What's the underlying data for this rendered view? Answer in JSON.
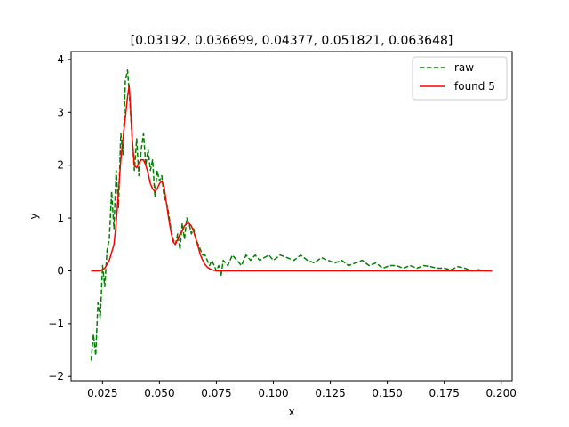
{
  "chart_data": {
    "type": "line",
    "title": "[0.03192, 0.036699, 0.04377, 0.051821, 0.063648]",
    "xlabel": "x",
    "ylabel": "y",
    "xlim": [
      0.0112,
      0.2048
    ],
    "ylim": [
      -2.08,
      4.15
    ],
    "x_ticks": [
      0.025,
      0.05,
      0.075,
      0.1,
      0.125,
      0.15,
      0.175,
      0.2
    ],
    "x_tick_labels": [
      "0.025",
      "0.050",
      "0.075",
      "0.100",
      "0.125",
      "0.150",
      "0.175",
      "0.200"
    ],
    "y_ticks": [
      -2,
      -1,
      0,
      1,
      2,
      3,
      4
    ],
    "y_tick_labels": [
      "−2",
      "−1",
      "0",
      "1",
      "2",
      "3",
      "4"
    ],
    "grid": false,
    "legend_position": "top-right",
    "series": [
      {
        "name": "raw",
        "color": "#008000",
        "style": "dashed",
        "x": [
          0.02,
          0.021,
          0.022,
          0.023,
          0.024,
          0.025,
          0.026,
          0.027,
          0.028,
          0.029,
          0.03,
          0.031,
          0.032,
          0.033,
          0.034,
          0.035,
          0.036,
          0.037,
          0.038,
          0.039,
          0.04,
          0.041,
          0.042,
          0.043,
          0.044,
          0.045,
          0.046,
          0.047,
          0.048,
          0.049,
          0.05,
          0.051,
          0.052,
          0.053,
          0.054,
          0.055,
          0.056,
          0.057,
          0.058,
          0.059,
          0.06,
          0.061,
          0.062,
          0.063,
          0.064,
          0.065,
          0.066,
          0.067,
          0.068,
          0.069,
          0.07,
          0.071,
          0.072,
          0.073,
          0.074,
          0.075,
          0.076,
          0.077,
          0.078,
          0.08,
          0.082,
          0.084,
          0.086,
          0.088,
          0.09,
          0.092,
          0.094,
          0.096,
          0.098,
          0.1,
          0.103,
          0.106,
          0.109,
          0.112,
          0.115,
          0.118,
          0.121,
          0.124,
          0.127,
          0.13,
          0.133,
          0.136,
          0.139,
          0.142,
          0.145,
          0.148,
          0.151,
          0.154,
          0.157,
          0.16,
          0.163,
          0.166,
          0.169,
          0.172,
          0.175,
          0.178,
          0.181,
          0.184,
          0.187,
          0.19,
          0.193,
          0.196
        ],
        "y": [
          -1.7,
          -1.2,
          -1.6,
          -0.6,
          -0.9,
          0.1,
          -0.3,
          0.4,
          0.6,
          1.5,
          0.8,
          1.9,
          1.2,
          2.6,
          2.2,
          3.6,
          3.8,
          3.2,
          2.5,
          1.9,
          2.5,
          1.8,
          2.3,
          2.6,
          2.0,
          2.3,
          1.9,
          2.1,
          1.4,
          1.9,
          1.7,
          1.8,
          1.4,
          1.3,
          1.1,
          0.8,
          0.6,
          0.5,
          0.7,
          0.4,
          0.9,
          0.6,
          1.0,
          0.9,
          0.7,
          0.8,
          0.6,
          0.5,
          0.4,
          0.3,
          0.3,
          0.2,
          0.1,
          0.2,
          0.1,
          0.0,
          0.1,
          -0.1,
          0.2,
          0.1,
          0.3,
          0.2,
          0.1,
          0.3,
          0.2,
          0.3,
          0.2,
          0.25,
          0.3,
          0.2,
          0.3,
          0.25,
          0.2,
          0.3,
          0.2,
          0.15,
          0.25,
          0.2,
          0.15,
          0.2,
          0.1,
          0.15,
          0.2,
          0.1,
          0.15,
          0.05,
          0.1,
          0.1,
          0.05,
          0.1,
          0.05,
          0.1,
          0.08,
          0.05,
          0.05,
          0.02,
          0.08,
          0.05,
          0.0,
          0.02,
          0.0,
          0.0
        ]
      },
      {
        "name": "found 5",
        "color": "#ff0000",
        "style": "solid",
        "x": [
          0.02,
          0.022,
          0.024,
          0.026,
          0.028,
          0.03,
          0.031,
          0.032,
          0.033,
          0.034,
          0.035,
          0.036,
          0.0367,
          0.037,
          0.038,
          0.039,
          0.04,
          0.041,
          0.042,
          0.043,
          0.044,
          0.045,
          0.046,
          0.047,
          0.048,
          0.049,
          0.05,
          0.051,
          0.052,
          0.053,
          0.054,
          0.055,
          0.056,
          0.057,
          0.058,
          0.059,
          0.06,
          0.061,
          0.062,
          0.063,
          0.064,
          0.065,
          0.066,
          0.067,
          0.068,
          0.069,
          0.07,
          0.071,
          0.072,
          0.073,
          0.074,
          0.075,
          0.076,
          0.078,
          0.08,
          0.085,
          0.09,
          0.1,
          0.12,
          0.14,
          0.16,
          0.18,
          0.196
        ],
        "y": [
          0.0,
          0.0,
          0.0,
          0.05,
          0.2,
          0.5,
          0.9,
          1.5,
          2.1,
          2.5,
          2.9,
          3.3,
          3.5,
          3.3,
          2.5,
          2.0,
          1.95,
          2.05,
          2.1,
          2.1,
          2.0,
          1.85,
          1.65,
          1.55,
          1.5,
          1.55,
          1.65,
          1.7,
          1.6,
          1.3,
          1.0,
          0.75,
          0.55,
          0.5,
          0.6,
          0.7,
          0.75,
          0.85,
          0.9,
          0.9,
          0.85,
          0.75,
          0.6,
          0.45,
          0.3,
          0.2,
          0.12,
          0.07,
          0.04,
          0.02,
          0.01,
          0.0,
          0.0,
          0.0,
          0.0,
          0.0,
          0.0,
          0.0,
          0.0,
          0.0,
          0.0,
          0.0,
          0.0
        ]
      }
    ]
  }
}
